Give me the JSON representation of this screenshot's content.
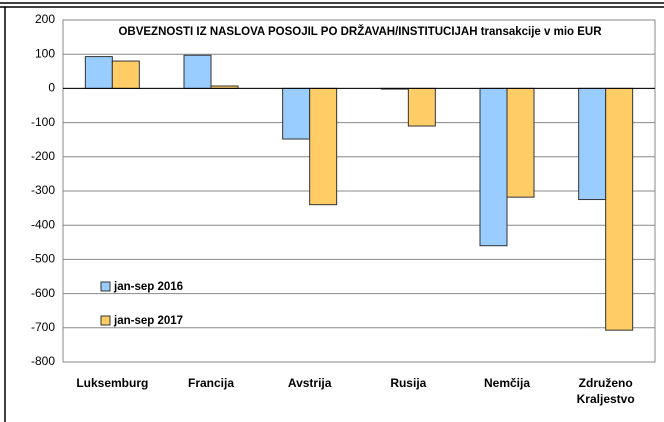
{
  "chart_data": {
    "type": "bar",
    "title": "OBVEZNOSTI IZ NASLOVA POSOJIL PO DRŽAVAH/INSTITUCIJAH transakcije v mio EUR",
    "categories": [
      "Luksemburg",
      "Francija",
      "Avstrija",
      "Rusija",
      "Nemčija",
      "Združeno Kraljestvo"
    ],
    "series": [
      {
        "name": "jan-sep 2016",
        "color": "#99ccff",
        "values": [
          93,
          97,
          -148,
          -2,
          -460,
          -325
        ]
      },
      {
        "name": "jan-sep 2017",
        "color": "#ffcc66",
        "values": [
          80,
          7,
          -340,
          -110,
          -318,
          -707
        ]
      }
    ],
    "ylim": [
      -800,
      200
    ],
    "yticks": [
      -800,
      -700,
      -600,
      -500,
      -400,
      -300,
      -200,
      -100,
      0,
      100,
      200
    ],
    "grid": true,
    "legend": "left"
  }
}
